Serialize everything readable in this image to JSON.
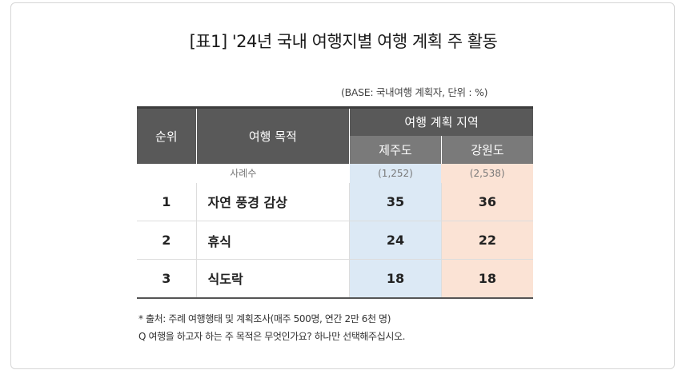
{
  "title": "[표1] '24년 국내 여행지별 여행 계획 주 활동",
  "base_note": "(BASE: 국내여행 계획자, 단위 : %)",
  "table": {
    "header": {
      "rank": "순위",
      "purpose": "여행 목적",
      "region_group": "여행 계획 지역",
      "jeju": "제주도",
      "gangwon": "강원도"
    },
    "sample": {
      "label": "사례수",
      "jeju": "(1,252)",
      "gangwon": "(2,538)"
    },
    "rows": [
      {
        "rank": "1",
        "purpose": "자연 풍경 감상",
        "jeju": "35",
        "gangwon": "36"
      },
      {
        "rank": "2",
        "purpose": "휴식",
        "jeju": "24",
        "gangwon": "22"
      },
      {
        "rank": "3",
        "purpose": "식도락",
        "jeju": "18",
        "gangwon": "18"
      }
    ]
  },
  "footnotes": {
    "source": "* 출처: 주례 여행행태 및 계획조사(매주 500명, 연간 2만 6천 명)",
    "question": "Q 여행을 하고자 하는 주 목적은 무엇인가요? 하나만 선택해주십시오."
  },
  "colors": {
    "header_dark": "#595959",
    "header_mid": "#7a7a7a",
    "jeju_bg": "#dce9f5",
    "gangwon_bg": "#fbe3d5"
  }
}
